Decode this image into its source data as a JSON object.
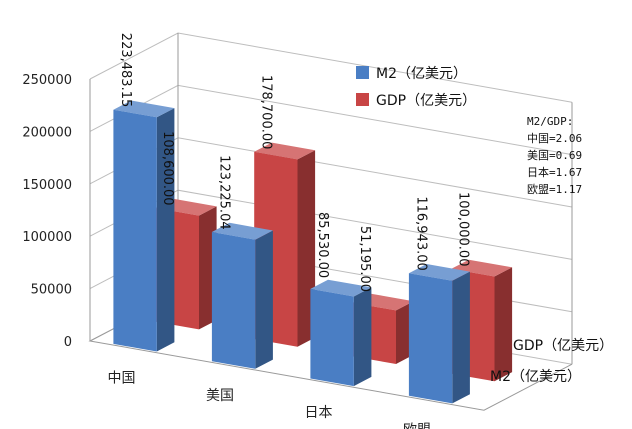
{
  "chart_data": {
    "type": "bar",
    "categories": [
      "中国",
      "美国",
      "日本",
      "欧盟"
    ],
    "series": [
      {
        "name": "M2（亿美元）",
        "values": [
          223483.15,
          123225.04,
          85530.0,
          116943.0
        ],
        "labels": [
          "223,483.15",
          "123,225.04",
          "85,530.00",
          "116,943.00"
        ],
        "color": "#4a7ec4"
      },
      {
        "name": "GDP（亿美元）",
        "values": [
          108600.0,
          178700.0,
          51195.0,
          100000.0
        ],
        "labels": [
          "108,600.00",
          "178,700.00",
          "51,195.00",
          "100,000.00"
        ],
        "color": "#c84545"
      }
    ],
    "yticks": [
      "0",
      "50000",
      "100000",
      "150000",
      "200000",
      "250000"
    ],
    "ylim": [
      0,
      250000
    ],
    "depth_axis_labels": [
      "GDP（亿美元）",
      "M2（亿美元）"
    ],
    "legend_position": "top-right",
    "annotation": {
      "title": "M2/GDP:",
      "lines": [
        "中国=2.06",
        "美国=0.69",
        "日本=1.67",
        "欧盟=1.17"
      ]
    },
    "grid": true
  }
}
